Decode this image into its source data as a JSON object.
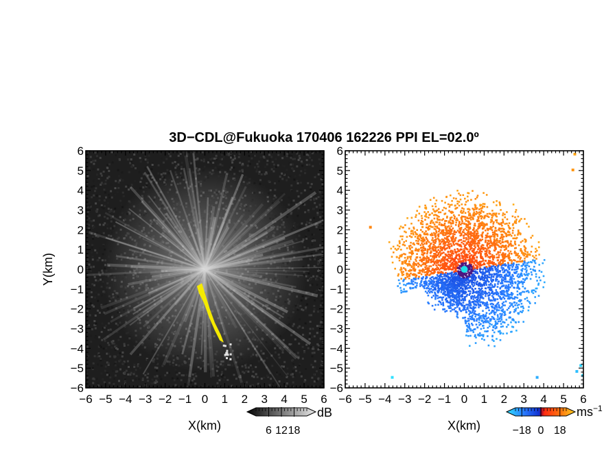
{
  "chart_data": [
    {
      "type": "heatmap",
      "title": "3D−CDL@Fukuoka 170406 162226 PPI EL=02.0º",
      "xlabel": "X(km)",
      "ylabel": "Y(km)",
      "xlim": [
        -6,
        6
      ],
      "ylim": [
        -6,
        6
      ],
      "x_ticks": [
        "−6",
        "−5",
        "−4",
        "−3",
        "−2",
        "−1",
        "0",
        "1",
        "2",
        "3",
        "4",
        "5",
        "6"
      ],
      "y_ticks": [
        "−6",
        "−5",
        "−4",
        "−3",
        "−2",
        "−1",
        "0",
        "1",
        "2",
        "3",
        "4",
        "5",
        "6"
      ],
      "colorbar": {
        "unit": "dB",
        "ticks": [
          "6",
          "12",
          "18"
        ],
        "values": [
          6,
          12,
          18
        ],
        "colormap": "grayscale",
        "range": [
          0,
          24
        ]
      },
      "highlight_color": "#f5ea00",
      "background_color": "#1e1e1e"
    },
    {
      "type": "heatmap",
      "xlabel": "X(km)",
      "xlim": [
        -6,
        6
      ],
      "ylim": [
        -6,
        6
      ],
      "x_ticks": [
        "−6",
        "−5",
        "−4",
        "−3",
        "−2",
        "−1",
        "0",
        "1",
        "2",
        "3",
        "4",
        "5",
        "6"
      ],
      "y_ticks": [
        "−6",
        "−5",
        "−4",
        "−3",
        "−2",
        "−1",
        "0",
        "1",
        "2",
        "3",
        "4",
        "5",
        "6"
      ],
      "colorbar": {
        "unit": "ms",
        "unit_exponent": "−1",
        "ticks": [
          "−18",
          "0",
          "18"
        ],
        "values": [
          -18,
          0,
          18
        ],
        "colormap": "blue-red diverging",
        "range": [
          -24,
          24
        ]
      },
      "background_color": "#ffffff"
    }
  ]
}
